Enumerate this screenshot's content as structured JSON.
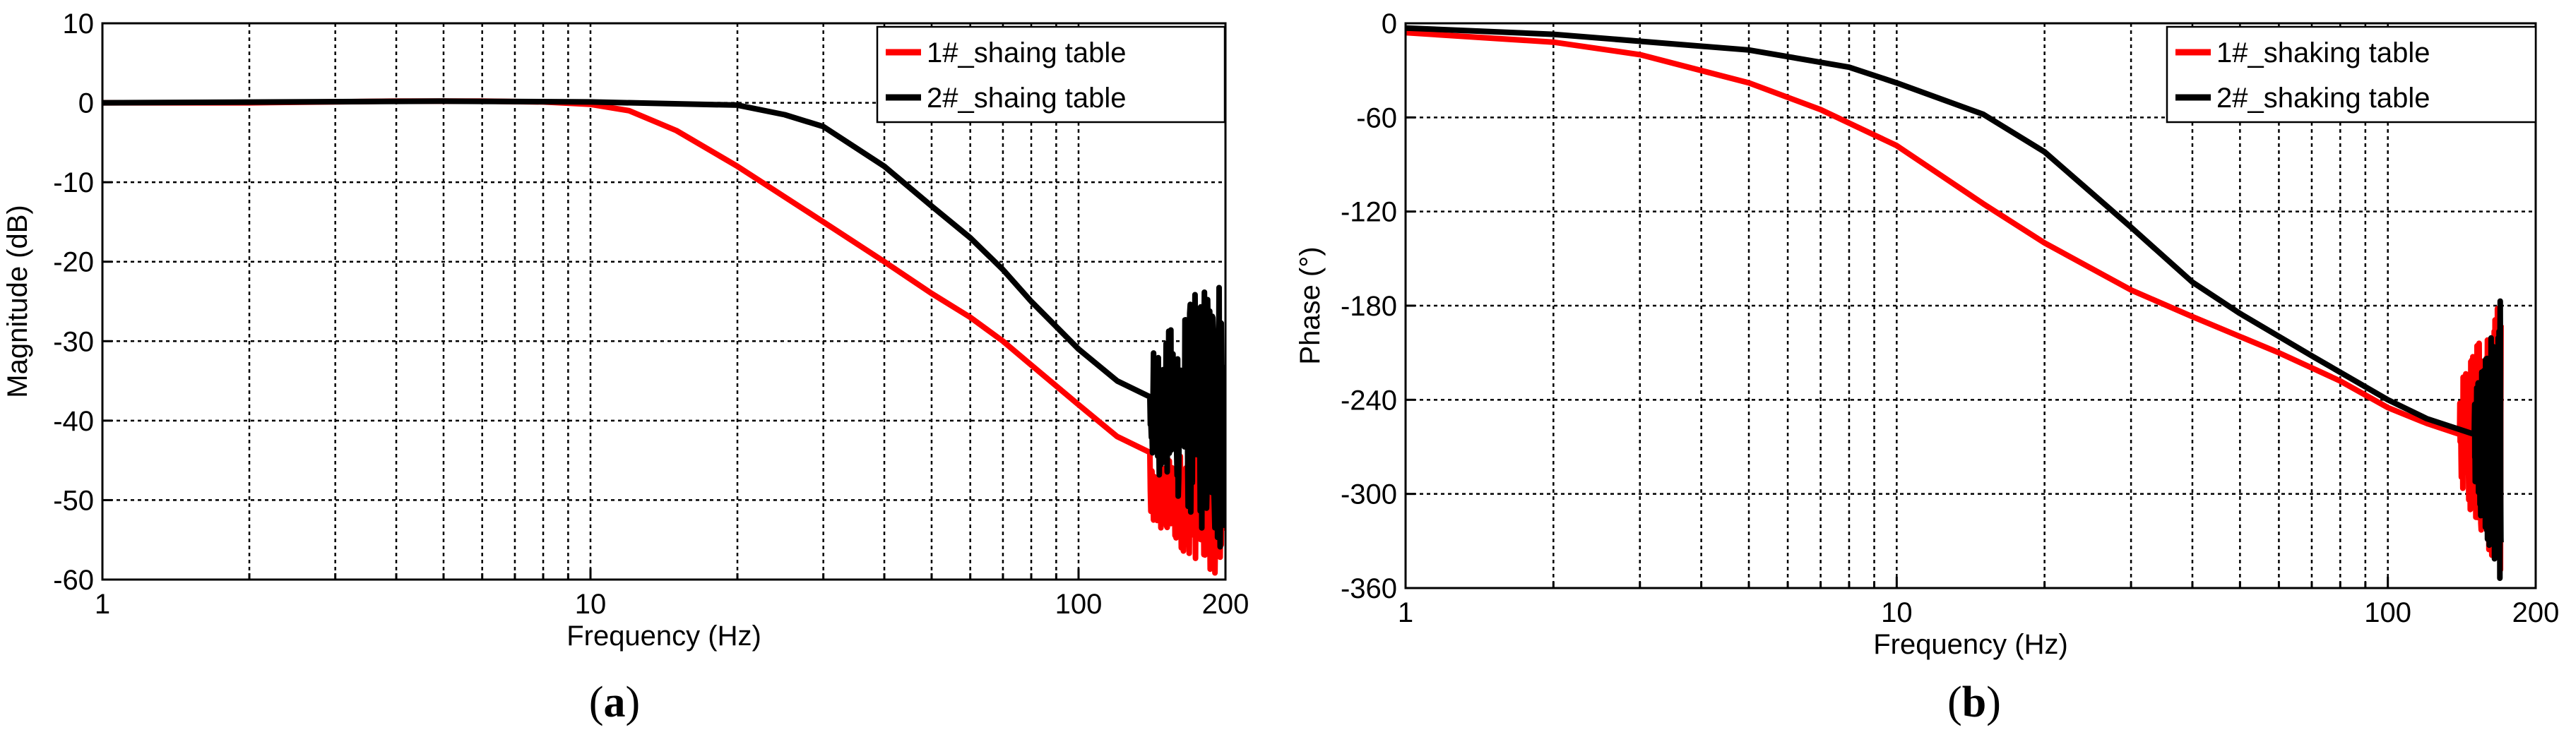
{
  "chart_data": [
    {
      "type": "line",
      "panel_label_open": "(",
      "panel_label_letter": "a",
      "panel_label_close": ")",
      "xlabel": "Frequency (Hz)",
      "ylabel": "Magnitude (dB)",
      "xscale": "log",
      "xlim": [
        1,
        200
      ],
      "ylim": [
        -60,
        10
      ],
      "xtick_labels": [
        {
          "value": 1,
          "label": "1"
        },
        {
          "value": 10,
          "label": "10"
        },
        {
          "value": 100,
          "label": "100"
        },
        {
          "value": 200,
          "label": "200"
        }
      ],
      "yticks": [
        10,
        0,
        -10,
        -20,
        -30,
        -40,
        -50,
        -60
      ],
      "grid": true,
      "legend_position": "top-right",
      "series": [
        {
          "name": "1#_shaing table",
          "color": "#ff0000",
          "points": [
            [
              1,
              0
            ],
            [
              2,
              0
            ],
            [
              4,
              0.2
            ],
            [
              6,
              0.2
            ],
            [
              8,
              0.1
            ],
            [
              10,
              -0.2
            ],
            [
              12,
              -1
            ],
            [
              15,
              -3.5
            ],
            [
              20,
              -8
            ],
            [
              30,
              -15
            ],
            [
              40,
              -20
            ],
            [
              50,
              -24
            ],
            [
              60,
              -27
            ],
            [
              70,
              -30
            ],
            [
              80,
              -33
            ],
            [
              100,
              -38
            ],
            [
              120,
              -42
            ],
            [
              140,
              -44
            ]
          ],
          "noise_from": 120,
          "noise_range": [
            -60,
            -40
          ]
        },
        {
          "name": "2#_shaing table",
          "color": "#000000",
          "points": [
            [
              1,
              0
            ],
            [
              5,
              0.2
            ],
            [
              10,
              0.1
            ],
            [
              20,
              -0.3
            ],
            [
              25,
              -1.5
            ],
            [
              30,
              -3
            ],
            [
              40,
              -8
            ],
            [
              50,
              -13
            ],
            [
              60,
              -17
            ],
            [
              70,
              -21
            ],
            [
              80,
              -25
            ],
            [
              100,
              -31
            ],
            [
              120,
              -35
            ],
            [
              140,
              -37
            ]
          ],
          "noise_from": 140,
          "noise_range": [
            -58,
            -19
          ]
        }
      ]
    },
    {
      "type": "line",
      "panel_label_open": "(",
      "panel_label_letter": "b",
      "panel_label_close": ")",
      "xlabel": "Frequency (Hz)",
      "ylabel": "Phase (°)",
      "xscale": "log",
      "xlim": [
        1,
        200
      ],
      "ylim": [
        -360,
        0
      ],
      "xtick_labels": [
        {
          "value": 1,
          "label": "1"
        },
        {
          "value": 10,
          "label": "10"
        },
        {
          "value": 100,
          "label": "100"
        },
        {
          "value": 200,
          "label": "200"
        }
      ],
      "yticks": [
        0,
        -60,
        -120,
        -180,
        -240,
        -300,
        -360
      ],
      "grid": true,
      "legend_position": "top-right",
      "series": [
        {
          "name": "1#_shaking table",
          "color": "#ff0000",
          "points": [
            [
              1,
              -6
            ],
            [
              2,
              -12
            ],
            [
              3,
              -20
            ],
            [
              5,
              -38
            ],
            [
              7,
              -55
            ],
            [
              10,
              -78
            ],
            [
              15,
              -115
            ],
            [
              20,
              -140
            ],
            [
              30,
              -170
            ],
            [
              40,
              -187
            ],
            [
              60,
              -210
            ],
            [
              80,
              -228
            ],
            [
              100,
              -245
            ],
            [
              120,
              -255
            ],
            [
              140,
              -262
            ]
          ],
          "noise_from": 120,
          "noise_range": [
            -355,
            -170
          ]
        },
        {
          "name": "2#_shaking table",
          "color": "#000000",
          "points": [
            [
              1,
              -3
            ],
            [
              2,
              -7
            ],
            [
              5,
              -17
            ],
            [
              8,
              -28
            ],
            [
              10,
              -38
            ],
            [
              15,
              -58
            ],
            [
              20,
              -82
            ],
            [
              30,
              -130
            ],
            [
              40,
              -165
            ],
            [
              50,
              -185
            ],
            [
              70,
              -212
            ],
            [
              100,
              -240
            ],
            [
              120,
              -252
            ],
            [
              150,
              -262
            ]
          ],
          "noise_from": 120,
          "noise_range": [
            -360,
            -175
          ]
        }
      ]
    }
  ]
}
